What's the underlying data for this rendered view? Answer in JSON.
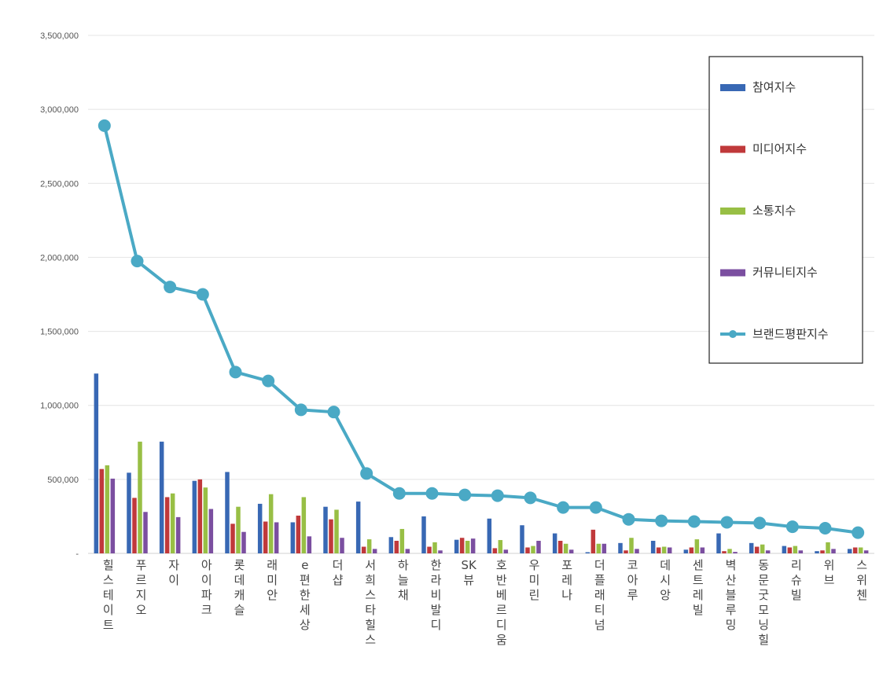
{
  "chart_data": {
    "type": "bar",
    "title": "",
    "xlabel": "",
    "ylabel": "",
    "ylim": [
      0,
      3500000
    ],
    "yticks": [
      0,
      500000,
      1000000,
      1500000,
      2000000,
      2500000,
      3000000,
      3500000
    ],
    "ytick_labels": [
      "-",
      "500,000",
      "1,000,000",
      "1,500,000",
      "2,000,000",
      "2,500,000",
      "3,000,000",
      "3,500,000"
    ],
    "grid": true,
    "legend_position": "right",
    "categories": [
      "힐스테이트",
      "푸르지오",
      "자이",
      "아이파크",
      "롯데캐슬",
      "래미안",
      "e편한세상",
      "더샵",
      "서희스타힐스",
      "하늘채",
      "한라비발디",
      "SK뷰",
      "호반베르디움",
      "우미린",
      "포레나",
      "더플래티넘",
      "코아루",
      "데시앙",
      "센트레빌",
      "벽산블루밍",
      "동문굿모닝힐",
      "리슈빌",
      "위브",
      "스위첸"
    ],
    "series": [
      {
        "name": "참여지수",
        "kind": "bar",
        "color": "#3868b4",
        "values": [
          1215000,
          545000,
          755000,
          490000,
          550000,
          335000,
          210000,
          315000,
          350000,
          110000,
          250000,
          92000,
          235000,
          190000,
          135000,
          8000,
          70000,
          85000,
          25000,
          135000,
          70000,
          50000,
          15000,
          30000
        ]
      },
      {
        "name": "미디어지수",
        "kind": "bar",
        "color": "#c0393b",
        "values": [
          570000,
          375000,
          380000,
          500000,
          200000,
          215000,
          255000,
          230000,
          45000,
          85000,
          45000,
          105000,
          35000,
          40000,
          85000,
          160000,
          20000,
          40000,
          40000,
          15000,
          45000,
          40000,
          20000,
          40000
        ]
      },
      {
        "name": "소통지수",
        "kind": "bar",
        "color": "#98bf45",
        "values": [
          595000,
          755000,
          405000,
          445000,
          315000,
          400000,
          380000,
          295000,
          95000,
          165000,
          75000,
          85000,
          90000,
          50000,
          65000,
          65000,
          105000,
          45000,
          95000,
          30000,
          60000,
          50000,
          75000,
          40000
        ]
      },
      {
        "name": "커뮤니티지수",
        "kind": "bar",
        "color": "#7b4fa0",
        "values": [
          505000,
          280000,
          245000,
          300000,
          145000,
          210000,
          115000,
          105000,
          30000,
          30000,
          20000,
          100000,
          25000,
          85000,
          25000,
          65000,
          30000,
          40000,
          40000,
          10000,
          20000,
          20000,
          30000,
          20000
        ]
      },
      {
        "name": "브랜드평판지수",
        "kind": "line",
        "color": "#4aa9c5",
        "values": [
          2890000,
          1975000,
          1800000,
          1750000,
          1225000,
          1165000,
          970000,
          955000,
          540000,
          405000,
          405000,
          395000,
          390000,
          375000,
          310000,
          310000,
          230000,
          220000,
          215000,
          210000,
          205000,
          180000,
          170000,
          140000
        ]
      }
    ]
  }
}
